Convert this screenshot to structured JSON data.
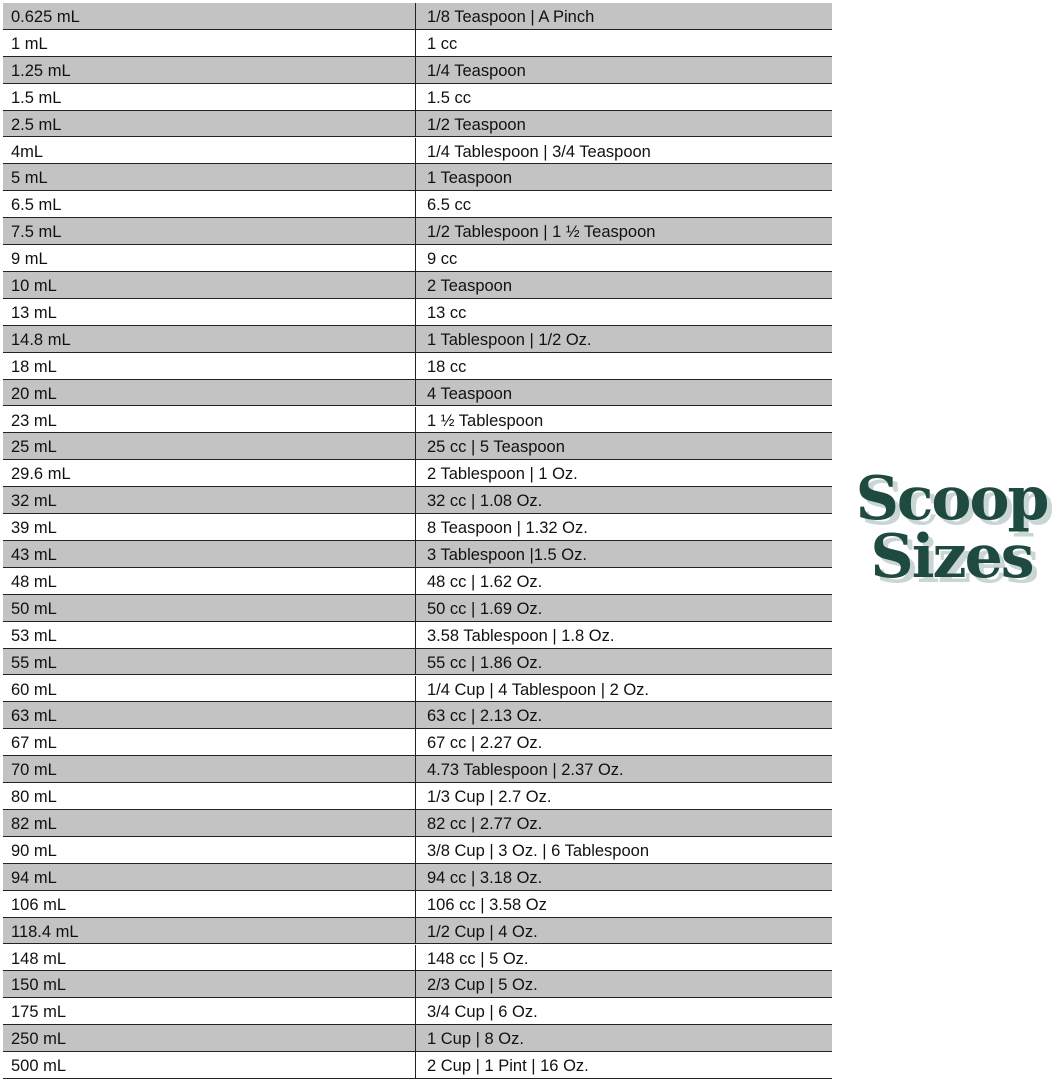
{
  "table": {
    "rows": [
      [
        "0.625 mL",
        "1/8 Teaspoon | A Pinch"
      ],
      [
        "1 mL",
        "1 cc"
      ],
      [
        "1.25 mL",
        "1/4 Teaspoon"
      ],
      [
        "1.5 mL",
        "1.5 cc"
      ],
      [
        "2.5 mL",
        "1/2 Teaspoon"
      ],
      [
        "4mL",
        "1/4 Tablespoon | 3/4 Teaspoon"
      ],
      [
        "5 mL",
        "1 Teaspoon"
      ],
      [
        "6.5 mL",
        "6.5 cc"
      ],
      [
        "7.5 mL",
        "1/2 Tablespoon | 1 ½ Teaspoon"
      ],
      [
        "9 mL",
        "9 cc"
      ],
      [
        "10 mL",
        "2 Teaspoon"
      ],
      [
        "13 mL",
        "13 cc"
      ],
      [
        "14.8 mL",
        "1 Tablespoon | 1/2 Oz."
      ],
      [
        "18 mL",
        "18 cc"
      ],
      [
        "20 mL",
        "4 Teaspoon"
      ],
      [
        "23 mL",
        "1 ½ Tablespoon"
      ],
      [
        "25 mL",
        "25 cc | 5 Teaspoon"
      ],
      [
        "29.6 mL",
        "2 Tablespoon | 1 Oz."
      ],
      [
        "32 mL",
        "32 cc | 1.08 Oz."
      ],
      [
        "39 mL",
        "8 Teaspoon | 1.32 Oz."
      ],
      [
        "43 mL",
        "3 Tablespoon |1.5 Oz."
      ],
      [
        "48 mL",
        "48 cc | 1.62 Oz."
      ],
      [
        "50 mL",
        "50 cc | 1.69 Oz."
      ],
      [
        "53 mL",
        "3.58 Tablespoon | 1.8 Oz."
      ],
      [
        "55 mL",
        "55 cc | 1.86 Oz."
      ],
      [
        "60 mL",
        "1/4 Cup | 4 Tablespoon | 2 Oz."
      ],
      [
        "63 mL",
        "63 cc | 2.13 Oz."
      ],
      [
        "67 mL",
        "67 cc | 2.27 Oz."
      ],
      [
        "70 mL",
        "4.73 Tablespoon | 2.37 Oz."
      ],
      [
        "80 mL",
        "1/3 Cup | 2.7 Oz."
      ],
      [
        "82 mL",
        "82 cc | 2.77 Oz."
      ],
      [
        "90 mL",
        "3/8 Cup | 3 Oz. | 6 Tablespoon"
      ],
      [
        "94 mL",
        "94 cc | 3.18 Oz."
      ],
      [
        "106 mL",
        "106 cc | 3.58 Oz"
      ],
      [
        "118.4 mL",
        "1/2 Cup | 4 Oz."
      ],
      [
        "148 mL",
        "148 cc | 5 Oz."
      ],
      [
        "150 mL",
        "2/3 Cup | 5 Oz."
      ],
      [
        "175 mL",
        "3/4 Cup | 6 Oz."
      ],
      [
        "250 mL",
        "1 Cup | 8 Oz."
      ],
      [
        "500 mL",
        "2 Cup | 1 Pint | 16 Oz."
      ]
    ]
  },
  "title": {
    "lines": [
      "Scoop",
      "Sizes"
    ]
  }
}
